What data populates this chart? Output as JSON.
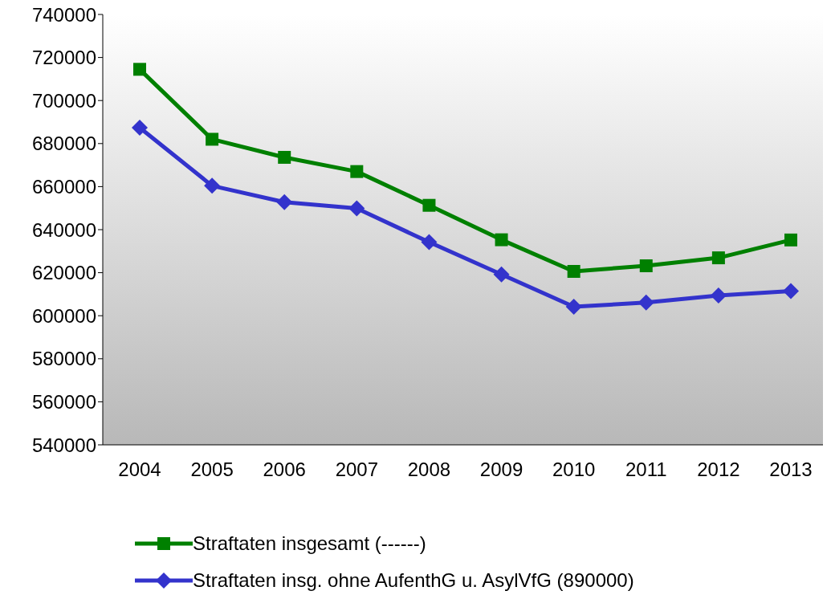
{
  "chart_data": {
    "type": "line",
    "categories": [
      "2004",
      "2005",
      "2006",
      "2007",
      "2008",
      "2009",
      "2010",
      "2011",
      "2012",
      "2013"
    ],
    "series": [
      {
        "name": "Straftaten insgesamt (------)",
        "color": "#008000",
        "marker": "square",
        "values": [
          714500,
          682000,
          673600,
          667000,
          651300,
          635300,
          620600,
          623200,
          626900,
          635200
        ]
      },
      {
        "name": "Straftaten insg. ohne AufenthG u. AsylVfG (890000)",
        "color": "#3333cc",
        "marker": "diamond",
        "values": [
          687400,
          660400,
          652800,
          649900,
          634200,
          619200,
          604200,
          606100,
          609400,
          611500
        ]
      }
    ],
    "ylim": [
      540000,
      740000
    ],
    "yticks": [
      540000,
      560000,
      580000,
      600000,
      620000,
      640000,
      660000,
      680000,
      700000,
      720000,
      740000
    ],
    "grid": false,
    "legend": "bottom"
  }
}
